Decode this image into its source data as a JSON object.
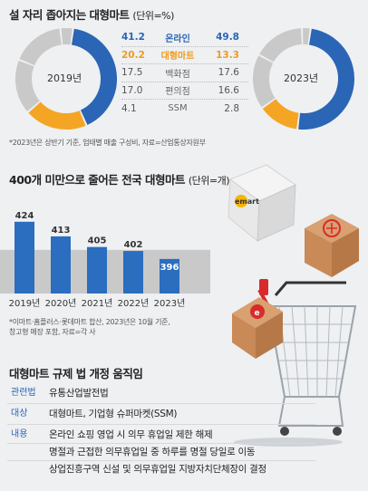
{
  "header": {
    "title": "설 자리 좁아지는 대형마트",
    "unit": "(단위=%)"
  },
  "share": {
    "year_left": "2019년",
    "year_right": "2023년",
    "rows": [
      {
        "v2019": "41.2",
        "label": "온라인",
        "v2023": "49.8",
        "style": "hl-blue"
      },
      {
        "v2019": "20.2",
        "label": "대형마트",
        "v2023": "13.3",
        "style": "hl-orange"
      },
      {
        "v2019": "17.5",
        "label": "백화점",
        "v2023": "17.6",
        "style": ""
      },
      {
        "v2019": "17.0",
        "label": "편의점",
        "v2023": "16.6",
        "style": ""
      },
      {
        "v2019": "4.1",
        "label": "SSM",
        "v2023": "2.8",
        "style": ""
      }
    ],
    "note": "*2023년은 상반기 기준, 업태별 매출 구성비, 자료=산업통상자원부",
    "colors": {
      "online": "#2b65b5",
      "mart": "#f5a524",
      "other": "#c9c9c9"
    }
  },
  "chart_data": [
    {
      "type": "pie",
      "title": "2019년",
      "categories": [
        "온라인",
        "대형마트",
        "백화점",
        "편의점",
        "SSM"
      ],
      "values": [
        41.2,
        20.2,
        17.5,
        17.0,
        4.1
      ]
    },
    {
      "type": "pie",
      "title": "2023년",
      "categories": [
        "온라인",
        "대형마트",
        "백화점",
        "편의점",
        "SSM"
      ],
      "values": [
        49.8,
        13.3,
        17.6,
        16.6,
        2.8
      ]
    },
    {
      "type": "bar",
      "title": "400개 미만으로 줄어든 전국 대형마트",
      "unit": "(단위=개)",
      "categories": [
        "2019년",
        "2020년",
        "2021년",
        "2022년",
        "2023년"
      ],
      "values": [
        424,
        413,
        405,
        402,
        396
      ],
      "ylim": [
        370,
        430
      ],
      "reference_line": 396,
      "colors": {
        "bar": "#2b6dbf",
        "band": "#c9c9c9"
      }
    }
  ],
  "bar_note": "*이마트·홈플러스·롯데마트 합산, 2023년은 10월 기준,\n창고형 매장 포함, 자료=각 사",
  "regulation": {
    "title": "대형마트 규제 법 개정 움직임",
    "rows": [
      {
        "key": "관련법",
        "value": "유통산업발전법"
      },
      {
        "key": "대상",
        "value": "대형마트, 기업형 슈퍼마켓(SSM)"
      }
    ],
    "content_key": "내용",
    "content_lines": [
      "온라인 쇼핑 영업 시 의무 휴업일 제한 해제",
      "명절과 근접한 의무휴업일 중 하루를 명절 당일로 이동",
      "상업진흥구역 신설 및 의무휴업일 지방자치단체장이 결정"
    ]
  },
  "decor": {
    "box_brand": "emart"
  }
}
